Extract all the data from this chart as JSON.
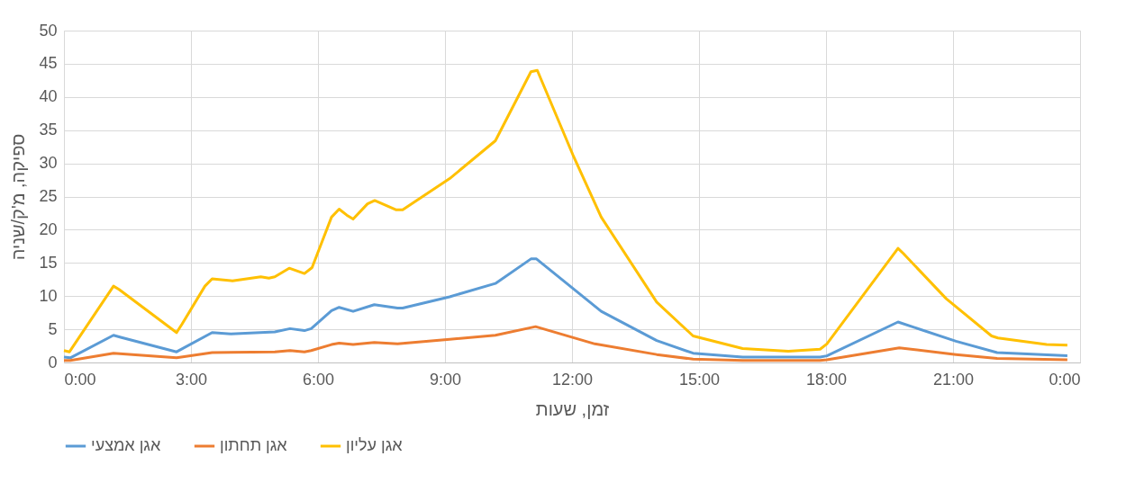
{
  "chart_data": {
    "type": "line",
    "xlabel": "זמן, שעות",
    "ylabel": "ספיקה, מ'ק/שניה",
    "xlim": [
      0,
      24
    ],
    "ylim": [
      0,
      50
    ],
    "xticks": [
      {
        "value": 0,
        "label": "0:00"
      },
      {
        "value": 3,
        "label": "3:00"
      },
      {
        "value": 6,
        "label": "6:00"
      },
      {
        "value": 9,
        "label": "9:00"
      },
      {
        "value": 12,
        "label": "12:00"
      },
      {
        "value": 15,
        "label": "15:00"
      },
      {
        "value": 18,
        "label": "18:00"
      },
      {
        "value": 21,
        "label": "21:00"
      },
      {
        "value": 24,
        "label": "0:00"
      }
    ],
    "yticks": [
      0,
      5,
      10,
      15,
      20,
      25,
      30,
      35,
      40,
      45,
      50
    ],
    "grid": true,
    "legend": "bottom",
    "marker": "none",
    "line_style": "solid",
    "series": [
      {
        "name": "אגן אמצעי",
        "color": "#5b9bd5",
        "x": [
          0,
          0.15,
          1.17,
          1.34,
          2.66,
          3.5,
          3.94,
          4.98,
          5.34,
          5.68,
          5.84,
          6.32,
          6.5,
          6.83,
          7.33,
          7.88,
          8.0,
          9.11,
          10.19,
          11.03,
          11.16,
          12.69,
          14.0,
          14.86,
          16.03,
          17.86,
          18.02,
          19.7,
          21.07,
          22.04,
          23.7
        ],
        "values": [
          0.8,
          0.7,
          4.1,
          3.8,
          1.6,
          4.5,
          4.3,
          4.6,
          5.1,
          4.8,
          5.1,
          7.8,
          8.3,
          7.7,
          8.7,
          8.2,
          8.2,
          9.9,
          11.9,
          15.6,
          15.6,
          7.7,
          3.3,
          1.4,
          0.8,
          0.8,
          1.0,
          6.1,
          3.2,
          1.5,
          1.0
        ]
      },
      {
        "name": "אגן תחתון",
        "color": "#ed7d31",
        "x": [
          0,
          0.15,
          1.17,
          2.66,
          3.5,
          4.98,
          5.34,
          5.68,
          5.84,
          6.32,
          6.5,
          6.83,
          7.33,
          7.88,
          9.11,
          10.19,
          11.14,
          12.54,
          14.0,
          14.86,
          16.03,
          17.86,
          18.02,
          19.73,
          21.07,
          22.04,
          23.7
        ],
        "values": [
          0.3,
          0.3,
          1.4,
          0.7,
          1.5,
          1.6,
          1.8,
          1.6,
          1.8,
          2.7,
          2.9,
          2.7,
          3.0,
          2.8,
          3.5,
          4.1,
          5.4,
          2.8,
          1.2,
          0.5,
          0.3,
          0.3,
          0.4,
          2.2,
          1.2,
          0.6,
          0.4
        ]
      },
      {
        "name": "אגן עליון",
        "color": "#ffc000",
        "x": [
          0,
          0.13,
          1.17,
          1.3,
          2.66,
          2.79,
          3.33,
          3.5,
          3.98,
          4.65,
          4.84,
          4.98,
          5.32,
          5.68,
          5.86,
          6.32,
          6.5,
          6.68,
          6.83,
          7.17,
          7.34,
          7.85,
          8.0,
          9.11,
          10.19,
          11.03,
          11.18,
          12.02,
          12.69,
          14.0,
          14.86,
          16.03,
          17.11,
          17.86,
          18.02,
          19.7,
          19.83,
          20.84,
          21.91,
          22.06,
          23.21,
          23.7
        ],
        "values": [
          1.8,
          1.6,
          11.5,
          11.0,
          4.5,
          5.8,
          11.5,
          12.6,
          12.3,
          12.9,
          12.7,
          12.9,
          14.2,
          13.4,
          14.3,
          21.9,
          23.1,
          22.2,
          21.6,
          23.9,
          24.4,
          23.0,
          23.0,
          27.7,
          33.4,
          43.8,
          44.0,
          31.3,
          21.9,
          9.1,
          4.0,
          2.1,
          1.7,
          2.0,
          2.8,
          17.2,
          16.4,
          9.6,
          4.0,
          3.7,
          2.7,
          2.6
        ]
      }
    ]
  }
}
